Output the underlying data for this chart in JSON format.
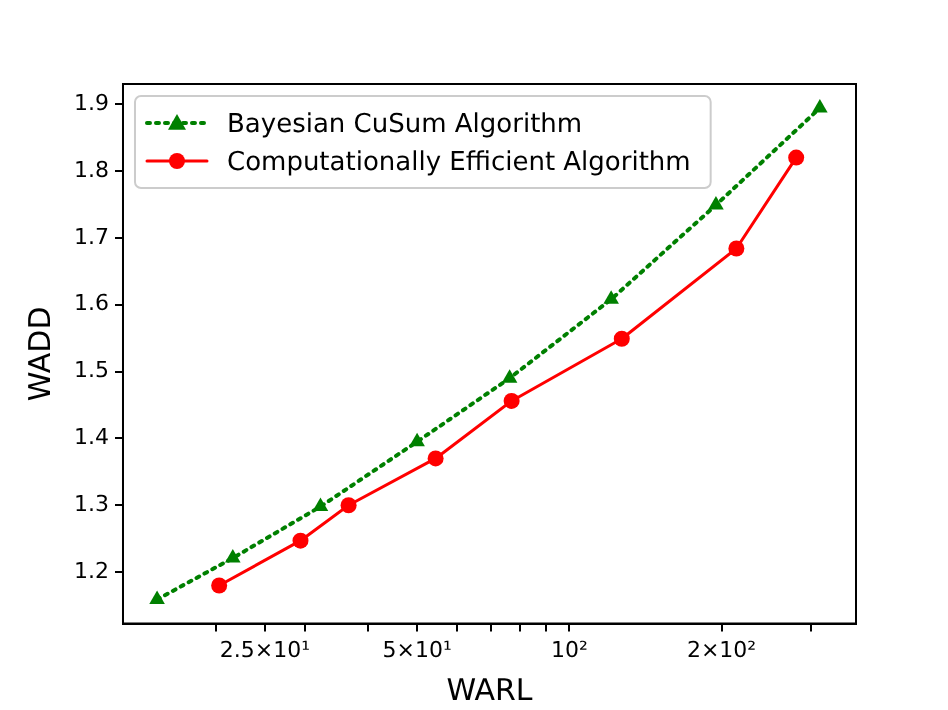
{
  "chart_data": {
    "type": "line",
    "xlabel": "WARL",
    "ylabel": "WADD",
    "log": "x",
    "xlim": [
      13.1,
      369
    ],
    "xticks": [
      {
        "value": 20,
        "label": null
      },
      {
        "value": 25,
        "label": "2.5×10¹"
      },
      {
        "value": 30,
        "label": null
      },
      {
        "value": 40,
        "label": null
      },
      {
        "value": 50,
        "label": "5×10¹"
      },
      {
        "value": 60,
        "label": null
      },
      {
        "value": 70,
        "label": null
      },
      {
        "value": 80,
        "label": null
      },
      {
        "value": 90,
        "label": null
      },
      {
        "value": 100,
        "label": "10²"
      },
      {
        "value": 200,
        "label": "2×10²"
      },
      {
        "value": 300,
        "label": null
      }
    ],
    "ylim": [
      1.123,
      1.93
    ],
    "yticks": [
      1.2,
      1.3,
      1.4,
      1.5,
      1.6,
      1.7,
      1.8,
      1.9
    ],
    "grid": false,
    "legend": "top left",
    "series": [
      {
        "name": "Bayesian CuSum Algorithm",
        "color": "#008000",
        "marker": "triangle",
        "line_style": "dotted",
        "x": [
          15.3,
          21.6,
          32.2,
          50,
          76.2,
          121,
          195,
          313
        ],
        "values": [
          1.159,
          1.221,
          1.298,
          1.395,
          1.49,
          1.608,
          1.749,
          1.894
        ]
      },
      {
        "name": "Computationally Efficient Algorithm",
        "color": "#ff0000",
        "marker": "circle",
        "line_style": "solid",
        "x": [
          20.3,
          29.4,
          36.6,
          54.4,
          76.9,
          127,
          214,
          281
        ],
        "values": [
          1.18,
          1.247,
          1.3,
          1.37,
          1.456,
          1.549,
          1.684,
          1.82
        ]
      }
    ]
  }
}
